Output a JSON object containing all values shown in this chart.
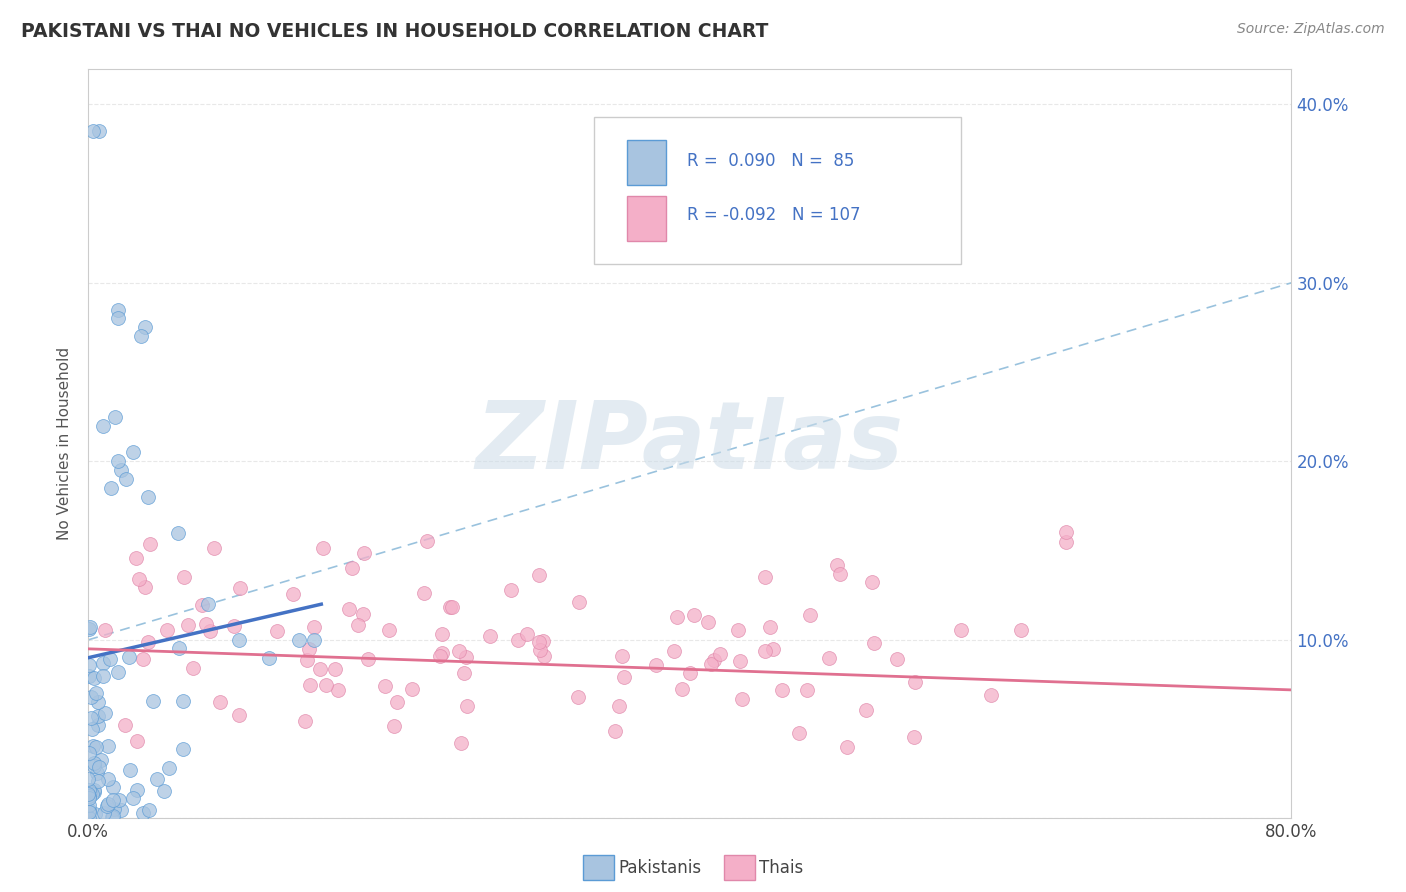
{
  "title": "PAKISTANI VS THAI NO VEHICLES IN HOUSEHOLD CORRELATION CHART",
  "source": "Source: ZipAtlas.com",
  "ylabel": "No Vehicles in Household",
  "xlim": [
    0.0,
    0.8
  ],
  "ylim": [
    0.0,
    0.42
  ],
  "ytick_positions": [
    0.0,
    0.1,
    0.2,
    0.3,
    0.4
  ],
  "ytick_labels_right": [
    "",
    "10.0%",
    "20.0%",
    "30.0%",
    "40.0%"
  ],
  "pakistani_R": 0.09,
  "pakistani_N": 85,
  "thai_R": -0.092,
  "thai_N": 107,
  "color_pakistani_fill": "#a8c4e0",
  "color_pakistani_edge": "#5b9bd5",
  "color_thai_fill": "#f4afc8",
  "color_thai_edge": "#e088aa",
  "color_trend_pak": "#4472c4",
  "color_trend_thai": "#e07090",
  "color_dashed": "#88b8d8",
  "color_grid": "#e8e8e8",
  "color_right_axis": "#4472c4",
  "watermark": "ZIPatlas",
  "legend_label_pakistani": "Pakistanis",
  "legend_label_thai": "Thais",
  "marker_size": 100,
  "marker_alpha": 0.75
}
